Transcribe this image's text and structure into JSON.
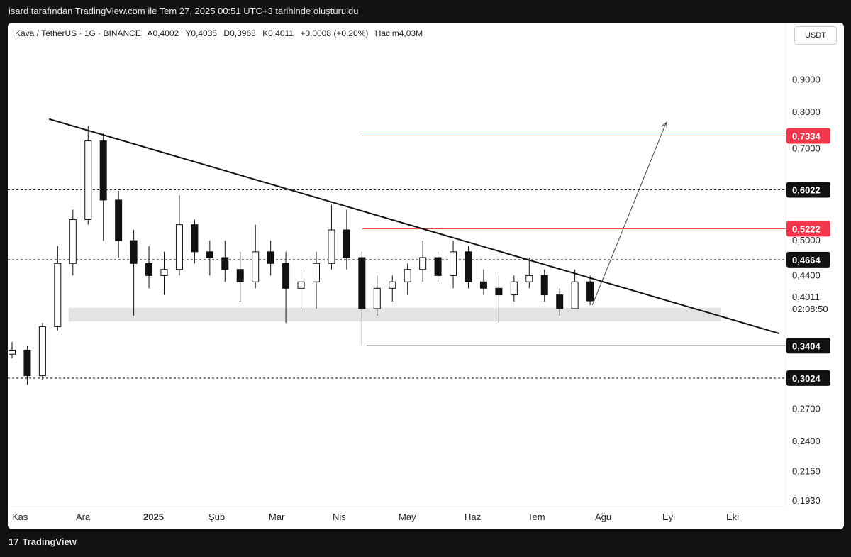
{
  "watermark": "isard tarafından TradingView.com ile Tem 27, 2025 00:51 UTC+3 tarihinde oluşturuldu",
  "legend": {
    "symbol": "Kava / TetherUS · 1G · BINANCE",
    "open": "A0,4002",
    "high": "Y0,4035",
    "low": "D0,3968",
    "close": "K0,4011",
    "change": "+0,0008 (+0,20%)",
    "volume": "Hacim4,03M"
  },
  "currency_button": "USDT",
  "footer": {
    "brand": "TradingView",
    "logo": "tradingview-logo"
  },
  "chart_data": {
    "type": "candlestick",
    "y_scale": "log",
    "ylim": [
      0.19,
      1.0
    ],
    "y_ticks": [
      "0,9000",
      "0,8000",
      "0,7000",
      "0,5000",
      "0,4400",
      "0,2700",
      "0,2400",
      "0,2150",
      "0,1930"
    ],
    "x_ticks": [
      "Kas",
      "Ara",
      "2025",
      "Şub",
      "Mar",
      "Nis",
      "May",
      "Haz",
      "Tem",
      "Ağu",
      "Eyl",
      "Eki"
    ],
    "x_range": [
      "2024-11-01",
      "2025-10-25"
    ],
    "last_price": {
      "value": "0,4011",
      "countdown": "02:08:50"
    },
    "price_labels": [
      {
        "text": "0,7334",
        "value": 0.7334,
        "style": "red"
      },
      {
        "text": "0,6022",
        "value": 0.6022,
        "style": "black"
      },
      {
        "text": "0,5222",
        "value": 0.5222,
        "style": "red"
      },
      {
        "text": "0,4664",
        "value": 0.4664,
        "style": "black"
      },
      {
        "text": "0,3404",
        "value": 0.3404,
        "style": "black"
      },
      {
        "text": "0,3024",
        "value": 0.3024,
        "style": "black"
      }
    ],
    "horizontal_lines": [
      {
        "value": 0.7334,
        "from": "2025-04-13",
        "color": "#e53935",
        "dash": false
      },
      {
        "value": 0.6022,
        "from": "2024-11-01",
        "color": "#222222",
        "dash": true
      },
      {
        "value": 0.5222,
        "from": "2025-04-13",
        "color": "#e53935",
        "dash": false
      },
      {
        "value": 0.4664,
        "from": "2024-11-01",
        "color": "#222222",
        "dash": true
      },
      {
        "value": 0.3404,
        "from": "2025-04-15",
        "color": "#111111",
        "dash": false
      },
      {
        "value": 0.3024,
        "from": "2024-11-01",
        "color": "#222222",
        "dash": true
      }
    ],
    "support_zone": {
      "from": "2024-11-29",
      "to": "2025-09-25",
      "low": 0.372,
      "high": 0.391
    },
    "trendline": {
      "from": {
        "date": "2024-11-20",
        "value": 0.78
      },
      "to": {
        "date": "2025-10-22",
        "value": 0.356
      }
    },
    "arrow": {
      "from": {
        "date": "2025-07-28",
        "value": 0.395
      },
      "to": {
        "date": "2025-08-31",
        "value": 0.77
      }
    },
    "ohlc_weekly": [
      {
        "date": "2024-11-01",
        "o": 0.33,
        "h": 0.345,
        "l": 0.325,
        "c": 0.335
      },
      {
        "date": "2024-11-08",
        "o": 0.335,
        "h": 0.34,
        "l": 0.295,
        "c": 0.305
      },
      {
        "date": "2024-11-15",
        "o": 0.305,
        "h": 0.37,
        "l": 0.3,
        "c": 0.365
      },
      {
        "date": "2024-11-22",
        "o": 0.365,
        "h": 0.49,
        "l": 0.36,
        "c": 0.46
      },
      {
        "date": "2024-11-29",
        "o": 0.46,
        "h": 0.56,
        "l": 0.44,
        "c": 0.54
      },
      {
        "date": "2024-12-06",
        "o": 0.54,
        "h": 0.76,
        "l": 0.53,
        "c": 0.72
      },
      {
        "date": "2024-12-13",
        "o": 0.72,
        "h": 0.74,
        "l": 0.5,
        "c": 0.58
      },
      {
        "date": "2024-12-20",
        "o": 0.58,
        "h": 0.6,
        "l": 0.47,
        "c": 0.5
      },
      {
        "date": "2024-12-27",
        "o": 0.5,
        "h": 0.52,
        "l": 0.38,
        "c": 0.46
      },
      {
        "date": "2025-01-03",
        "o": 0.46,
        "h": 0.49,
        "l": 0.42,
        "c": 0.44
      },
      {
        "date": "2025-01-10",
        "o": 0.44,
        "h": 0.48,
        "l": 0.41,
        "c": 0.45
      },
      {
        "date": "2025-01-17",
        "o": 0.45,
        "h": 0.59,
        "l": 0.44,
        "c": 0.53
      },
      {
        "date": "2025-01-24",
        "o": 0.53,
        "h": 0.54,
        "l": 0.46,
        "c": 0.48
      },
      {
        "date": "2025-01-31",
        "o": 0.48,
        "h": 0.5,
        "l": 0.44,
        "c": 0.47
      },
      {
        "date": "2025-02-07",
        "o": 0.47,
        "h": 0.5,
        "l": 0.43,
        "c": 0.45
      },
      {
        "date": "2025-02-14",
        "o": 0.45,
        "h": 0.48,
        "l": 0.4,
        "c": 0.43
      },
      {
        "date": "2025-02-21",
        "o": 0.43,
        "h": 0.53,
        "l": 0.42,
        "c": 0.48
      },
      {
        "date": "2025-02-28",
        "o": 0.48,
        "h": 0.5,
        "l": 0.44,
        "c": 0.46
      },
      {
        "date": "2025-03-07",
        "o": 0.46,
        "h": 0.48,
        "l": 0.37,
        "c": 0.42
      },
      {
        "date": "2025-03-14",
        "o": 0.42,
        "h": 0.45,
        "l": 0.39,
        "c": 0.43
      },
      {
        "date": "2025-03-21",
        "o": 0.43,
        "h": 0.48,
        "l": 0.39,
        "c": 0.46
      },
      {
        "date": "2025-03-28",
        "o": 0.46,
        "h": 0.57,
        "l": 0.45,
        "c": 0.52
      },
      {
        "date": "2025-04-04",
        "o": 0.52,
        "h": 0.56,
        "l": 0.45,
        "c": 0.47
      },
      {
        "date": "2025-04-11",
        "o": 0.47,
        "h": 0.48,
        "l": 0.34,
        "c": 0.39
      },
      {
        "date": "2025-04-18",
        "o": 0.39,
        "h": 0.44,
        "l": 0.38,
        "c": 0.42
      },
      {
        "date": "2025-04-25",
        "o": 0.42,
        "h": 0.44,
        "l": 0.4,
        "c": 0.43
      },
      {
        "date": "2025-05-02",
        "o": 0.43,
        "h": 0.46,
        "l": 0.41,
        "c": 0.45
      },
      {
        "date": "2025-05-09",
        "o": 0.45,
        "h": 0.5,
        "l": 0.43,
        "c": 0.47
      },
      {
        "date": "2025-05-16",
        "o": 0.47,
        "h": 0.48,
        "l": 0.43,
        "c": 0.44
      },
      {
        "date": "2025-05-23",
        "o": 0.44,
        "h": 0.5,
        "l": 0.42,
        "c": 0.48
      },
      {
        "date": "2025-05-30",
        "o": 0.48,
        "h": 0.49,
        "l": 0.42,
        "c": 0.43
      },
      {
        "date": "2025-06-06",
        "o": 0.43,
        "h": 0.45,
        "l": 0.41,
        "c": 0.42
      },
      {
        "date": "2025-06-13",
        "o": 0.42,
        "h": 0.44,
        "l": 0.37,
        "c": 0.41
      },
      {
        "date": "2025-06-20",
        "o": 0.41,
        "h": 0.44,
        "l": 0.4,
        "c": 0.43
      },
      {
        "date": "2025-06-27",
        "o": 0.43,
        "h": 0.47,
        "l": 0.42,
        "c": 0.44
      },
      {
        "date": "2025-07-04",
        "o": 0.44,
        "h": 0.45,
        "l": 0.4,
        "c": 0.41
      },
      {
        "date": "2025-07-11",
        "o": 0.41,
        "h": 0.42,
        "l": 0.38,
        "c": 0.39
      },
      {
        "date": "2025-07-18",
        "o": 0.39,
        "h": 0.45,
        "l": 0.39,
        "c": 0.43
      },
      {
        "date": "2025-07-25",
        "o": 0.43,
        "h": 0.44,
        "l": 0.395,
        "c": 0.4011
      }
    ]
  }
}
